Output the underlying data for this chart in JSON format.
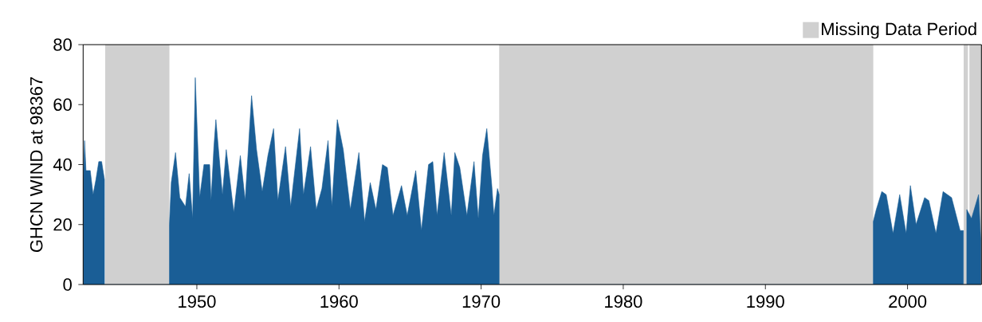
{
  "chart_data": {
    "type": "area",
    "ylabel": "GHCN WIND at 98367",
    "xlim": [
      1942,
      2005.2
    ],
    "xticks": [
      1950,
      1960,
      1970,
      1980,
      1990,
      2000
    ],
    "ylim": [
      0,
      80
    ],
    "yticks": [
      0,
      20,
      40,
      60,
      80
    ],
    "legend": "top right",
    "bands": [
      {
        "axis": "x",
        "from": 1943.55,
        "to": 1948.07,
        "label": "Missing Data Period",
        "color": "#d0d0d0"
      },
      {
        "axis": "x",
        "from": 1971.27,
        "to": 1997.59,
        "color": "#d0d0d0"
      },
      {
        "axis": "x",
        "from": 2003.95,
        "to": 2004.25,
        "color": "#d0d0d0"
      },
      {
        "axis": "x",
        "from": 2004.35,
        "to": 2005.2,
        "color": "#d0d0d0"
      }
    ],
    "series": [
      {
        "color": "#1a5e96",
        "x": [
          1942.0,
          1942.1,
          1942.2,
          1942.5,
          1942.7,
          1942.9,
          1943.1,
          1943.3,
          1943.5,
          1946,
          1948.07,
          1948.2,
          1948.5,
          1948.8,
          1949.2,
          1949.46,
          1949.7,
          1949.89,
          1950.2,
          1950.5,
          1950.9,
          1951.0,
          1951.2,
          1951.34,
          1951.8,
          1952.07,
          1952.6,
          1953.06,
          1953.4,
          1953.85,
          1954.2,
          1954.6,
          1955.0,
          1955.4,
          1955.7,
          1956.24,
          1956.6,
          1957.23,
          1957.5,
          1958.0,
          1958.4,
          1958.8,
          1959.23,
          1959.5,
          1959.88,
          1960.3,
          1960.8,
          1961.4,
          1961.8,
          1962.2,
          1962.6,
          1963.06,
          1963.4,
          1963.8,
          1964.4,
          1964.8,
          1965.4,
          1965.8,
          1966.3,
          1966.6,
          1966.9,
          1967.4,
          1967.9,
          1968.15,
          1968.5,
          1969.0,
          1969.5,
          1969.8,
          1970.1,
          1970.4,
          1970.75,
          1970.9,
          1971.15,
          1971.27,
          1985,
          1997.59,
          1997.8,
          1998.19,
          1998.5,
          1998.98,
          1999.45,
          1999.9,
          2000.2,
          2000.6,
          2001.2,
          2001.5,
          2002.0,
          2002.5,
          2003.1,
          2003.7,
          2003.93,
          2004.05,
          2004.17,
          2004.5,
          2005.0,
          2005.15
        ],
        "values": [
          33,
          48,
          38,
          38,
          30,
          35,
          41,
          41,
          35,
          null,
          20,
          34,
          44,
          29,
          26,
          37,
          22,
          69,
          29,
          40,
          40,
          28,
          46,
          55,
          30,
          45,
          24,
          43,
          28,
          63,
          45,
          31,
          43,
          52,
          28,
          46,
          26,
          52,
          30,
          46,
          25,
          32,
          48,
          26,
          55,
          45,
          25,
          44,
          21,
          34,
          25,
          40,
          39,
          23,
          33,
          23,
          38,
          18,
          40,
          41,
          23,
          44,
          23,
          44,
          39,
          23,
          41,
          22,
          43,
          52,
          33,
          23,
          32,
          30,
          null,
          21,
          25,
          31,
          30,
          17,
          30,
          17,
          33,
          20,
          29,
          28,
          17,
          31,
          29,
          18,
          18,
          null,
          25,
          22,
          30,
          15
        ]
      }
    ]
  }
}
